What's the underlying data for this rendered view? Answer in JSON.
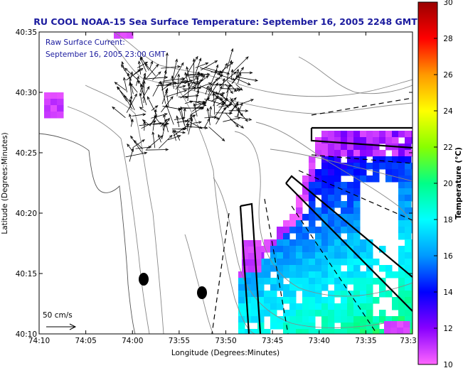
{
  "chart_data": {
    "type": "heatmap",
    "title": "RU COOL  NOAA-15  Sea Surface Temperature:  September 16, 2005 2248 GMT",
    "annotation_lines": [
      "Raw Surface Current:",
      "September 16, 2005 23:00 GMT"
    ],
    "xlabel": "Longitude (Degrees:Minutes)",
    "ylabel": "Latitude (Degrees:Minutes)",
    "x_ticks": [
      "74:10",
      "74:05",
      "74:00",
      "73:55",
      "73:50",
      "73:45",
      "73:40",
      "73:35",
      "73:3"
    ],
    "y_ticks": [
      "40:10",
      "40:15",
      "40:20",
      "40:25",
      "40:30",
      "40:35"
    ],
    "xlim": [
      "74:10",
      "73:30"
    ],
    "ylim": [
      "40:10",
      "40:35"
    ],
    "scale_label": "50 cm/s",
    "colorbar": {
      "label": "Temperature (°C)",
      "ticks": [
        "10",
        "12",
        "14",
        "16",
        "18",
        "20",
        "22",
        "24",
        "26",
        "28",
        "30"
      ],
      "range": [
        10,
        30
      ],
      "colors": [
        "#ff66ff",
        "#8800ff",
        "#0000ff",
        "#0099ff",
        "#00ffff",
        "#00ff88",
        "#88ff00",
        "#ffff00",
        "#ff9900",
        "#ff0000",
        "#990000"
      ]
    },
    "colors": {
      "title": "#1a1a9e",
      "land": "#ffffff",
      "contour": "#888888",
      "frame": "#000000"
    }
  }
}
